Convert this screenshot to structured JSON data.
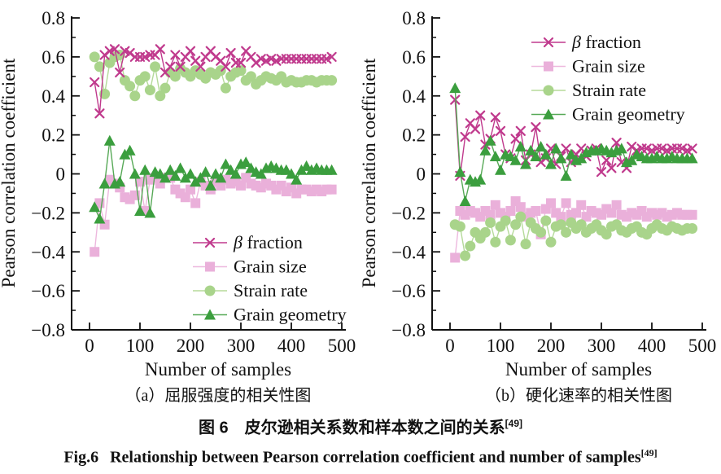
{
  "figure": {
    "caption_zh_prefix": "图 6",
    "caption_zh": "皮尔逊相关系数和样本数之间的关系",
    "caption_zh_ref": "[49]",
    "caption_en_prefix": "Fig.6",
    "caption_en": "Relationship between Pearson correlation coefficient and number of samples",
    "caption_en_ref": "[49]"
  },
  "chart_data": [
    {
      "id": "a",
      "type": "line",
      "title": "（a）屈服强度的相关性图",
      "xlabel": "Number of samples",
      "ylabel": "Pearson correlation coefficient",
      "xlim": [
        0,
        500
      ],
      "ylim": [
        -0.8,
        0.8
      ],
      "xticks": [
        0,
        100,
        200,
        300,
        400,
        500
      ],
      "yticks": [
        0.8,
        0.6,
        0.4,
        0.2,
        0,
        -0.2,
        -0.4,
        -0.6,
        -0.8
      ],
      "grid": false,
      "legend_position": "inside-lower-right",
      "x": [
        10,
        20,
        30,
        40,
        50,
        60,
        70,
        80,
        90,
        100,
        110,
        120,
        130,
        140,
        150,
        160,
        170,
        180,
        190,
        200,
        210,
        220,
        230,
        240,
        250,
        260,
        270,
        280,
        290,
        300,
        310,
        320,
        330,
        340,
        350,
        360,
        370,
        380,
        390,
        400,
        410,
        420,
        430,
        440,
        450,
        460,
        470,
        480
      ],
      "series": [
        {
          "name": "β fraction",
          "slug": "beta-fraction",
          "marker": "x-cross",
          "color": "#c03a8d",
          "line_color": "#c03a8d",
          "values": [
            0.47,
            0.31,
            0.61,
            0.63,
            0.64,
            0.52,
            0.63,
            0.62,
            0.6,
            0.6,
            0.6,
            0.61,
            0.61,
            0.64,
            0.52,
            0.55,
            0.61,
            0.55,
            0.6,
            0.63,
            0.58,
            0.55,
            0.6,
            0.63,
            0.6,
            0.58,
            0.55,
            0.62,
            0.57,
            0.57,
            0.63,
            0.6,
            0.57,
            0.59,
            0.58,
            0.59,
            0.58,
            0.59,
            0.59,
            0.59,
            0.59,
            0.59,
            0.59,
            0.59,
            0.59,
            0.59,
            0.59,
            0.6
          ]
        },
        {
          "name": "Grain size",
          "slug": "grain-size",
          "marker": "square",
          "color": "#eab0da",
          "line_color": "#edb8de",
          "values": [
            -0.4,
            -0.15,
            -0.26,
            -0.03,
            -0.05,
            -0.07,
            -0.12,
            -0.13,
            -0.11,
            -0.04,
            -0.19,
            -0.03,
            -0.02,
            -0.05,
            -0.02,
            -0.02,
            -0.08,
            -0.1,
            -0.12,
            -0.08,
            -0.15,
            -0.04,
            -0.06,
            -0.08,
            -0.04,
            -0.06,
            -0.03,
            -0.05,
            -0.04,
            -0.06,
            -0.02,
            -0.05,
            -0.06,
            -0.07,
            -0.05,
            -0.06,
            -0.08,
            -0.06,
            -0.09,
            -0.07,
            -0.1,
            -0.08,
            -0.08,
            -0.09,
            -0.08,
            -0.09,
            -0.08,
            -0.08
          ]
        },
        {
          "name": "Strain rate",
          "slug": "strain-rate",
          "marker": "circle",
          "color": "#a9d48b",
          "line_color": "#b5da9a",
          "values": [
            0.6,
            0.55,
            0.41,
            0.57,
            0.6,
            0.61,
            0.48,
            0.45,
            0.4,
            0.48,
            0.5,
            0.43,
            0.55,
            0.4,
            0.44,
            0.52,
            0.5,
            0.54,
            0.52,
            0.5,
            0.53,
            0.51,
            0.49,
            0.52,
            0.51,
            0.53,
            0.44,
            0.5,
            0.52,
            0.53,
            0.48,
            0.5,
            0.46,
            0.48,
            0.5,
            0.49,
            0.48,
            0.5,
            0.47,
            0.48,
            0.47,
            0.47,
            0.48,
            0.48,
            0.47,
            0.48,
            0.48,
            0.48
          ]
        },
        {
          "name": "Grain geometry",
          "slug": "grain-geometry",
          "marker": "triangle",
          "color": "#3b9e3e",
          "line_color": "#57a957",
          "values": [
            -0.17,
            -0.23,
            -0.05,
            0.17,
            -0.05,
            -0.04,
            0.1,
            0.12,
            0.0,
            -0.19,
            0.02,
            -0.2,
            0.01,
            0.0,
            -0.02,
            0.02,
            -0.01,
            0.03,
            -0.02,
            0.0,
            -0.04,
            -0.02,
            0.01,
            -0.06,
            0.0,
            -0.02,
            0.05,
            0.02,
            0.0,
            0.05,
            0.06,
            0.03,
            0.01,
            0.0,
            0.03,
            0.04,
            0.03,
            0.02,
            0.02,
            0.0,
            -0.03,
            0.02,
            0.04,
            0.02,
            0.03,
            0.02,
            0.02,
            0.02
          ]
        }
      ]
    },
    {
      "id": "b",
      "type": "line",
      "title": "（b）硬化速率的相关性图",
      "xlabel": "Number of samples",
      "ylabel": "Pearson correlation coefficient",
      "xlim": [
        0,
        500
      ],
      "ylim": [
        -0.8,
        0.8
      ],
      "xticks": [
        0,
        100,
        200,
        300,
        400,
        500
      ],
      "yticks": [
        0.8,
        0.6,
        0.4,
        0.2,
        0,
        -0.2,
        -0.4,
        -0.6,
        -0.8
      ],
      "grid": false,
      "legend_position": "inside-upper-right",
      "x": [
        10,
        20,
        30,
        40,
        50,
        60,
        70,
        80,
        90,
        100,
        110,
        120,
        130,
        140,
        150,
        160,
        170,
        180,
        190,
        200,
        210,
        220,
        230,
        240,
        250,
        260,
        270,
        280,
        290,
        300,
        310,
        320,
        330,
        340,
        350,
        360,
        370,
        380,
        390,
        400,
        410,
        420,
        430,
        440,
        450,
        460,
        470,
        480
      ],
      "series": [
        {
          "name": "β fraction",
          "slug": "beta-fraction",
          "marker": "x-cross",
          "color": "#c03a8d",
          "line_color": "#c03a8d",
          "values": [
            0.38,
            -0.01,
            0.19,
            0.26,
            0.23,
            0.3,
            0.15,
            0.18,
            0.29,
            0.22,
            0.1,
            0.08,
            0.18,
            0.22,
            0.07,
            0.1,
            0.24,
            0.06,
            0.08,
            0.13,
            0.05,
            0.09,
            0.13,
            0.06,
            0.1,
            0.13,
            0.09,
            0.12,
            0.13,
            0.01,
            0.07,
            0.03,
            0.16,
            0.06,
            0.03,
            0.14,
            0.12,
            0.13,
            0.13,
            0.12,
            0.13,
            0.13,
            0.12,
            0.13,
            0.13,
            0.13,
            0.12,
            0.13
          ]
        },
        {
          "name": "Grain size",
          "slug": "grain-size",
          "marker": "square",
          "color": "#eab0da",
          "line_color": "#edb8de",
          "values": [
            -0.43,
            -0.19,
            -0.21,
            -0.19,
            -0.2,
            -0.22,
            -0.19,
            -0.21,
            -0.16,
            -0.2,
            -0.22,
            -0.19,
            -0.14,
            -0.17,
            -0.22,
            -0.2,
            -0.19,
            -0.31,
            -0.18,
            -0.15,
            -0.2,
            -0.22,
            -0.15,
            -0.21,
            -0.2,
            -0.16,
            -0.22,
            -0.19,
            -0.2,
            -0.21,
            -0.18,
            -0.2,
            -0.16,
            -0.21,
            -0.22,
            -0.2,
            -0.21,
            -0.19,
            -0.22,
            -0.2,
            -0.21,
            -0.2,
            -0.22,
            -0.21,
            -0.2,
            -0.21,
            -0.21,
            -0.21
          ]
        },
        {
          "name": "Strain rate",
          "slug": "strain-rate",
          "marker": "circle",
          "color": "#a9d48b",
          "line_color": "#b5da9a",
          "values": [
            -0.26,
            -0.27,
            -0.42,
            -0.37,
            -0.3,
            -0.33,
            -0.3,
            -0.25,
            -0.35,
            -0.27,
            -0.24,
            -0.34,
            -0.26,
            -0.22,
            -0.36,
            -0.25,
            -0.28,
            -0.3,
            -0.24,
            -0.35,
            -0.27,
            -0.26,
            -0.3,
            -0.25,
            -0.28,
            -0.26,
            -0.3,
            -0.28,
            -0.26,
            -0.29,
            -0.31,
            -0.27,
            -0.26,
            -0.29,
            -0.3,
            -0.28,
            -0.27,
            -0.3,
            -0.31,
            -0.28,
            -0.26,
            -0.28,
            -0.29,
            -0.27,
            -0.28,
            -0.29,
            -0.28,
            -0.28
          ]
        },
        {
          "name": "Grain geometry",
          "slug": "grain-geometry",
          "marker": "triangle",
          "color": "#3b9e3e",
          "line_color": "#57a957",
          "values": [
            0.44,
            0.01,
            -0.14,
            -0.03,
            -0.04,
            -0.03,
            0.12,
            0.17,
            0.09,
            0.02,
            0.1,
            0.09,
            0.07,
            0.14,
            0.05,
            0.12,
            0.09,
            0.14,
            0.1,
            0.05,
            0.13,
            0.08,
            -0.01,
            0.1,
            0.07,
            0.08,
            0.11,
            0.12,
            0.12,
            0.13,
            0.12,
            0.11,
            0.12,
            0.13,
            0.06,
            0.07,
            0.1,
            0.09,
            0.08,
            0.08,
            0.09,
            0.08,
            0.08,
            0.09,
            0.08,
            0.08,
            0.08,
            0.08
          ]
        }
      ]
    }
  ]
}
